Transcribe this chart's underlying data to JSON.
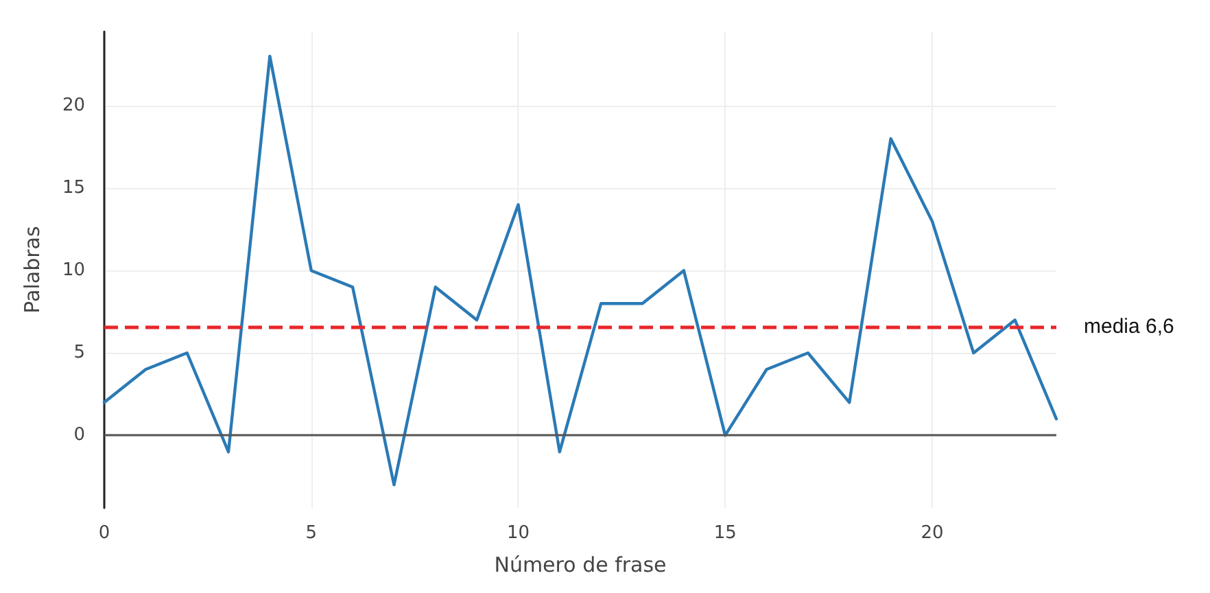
{
  "chart_data": {
    "type": "line",
    "xlabel": "Número de frase",
    "ylabel": "Palabras",
    "x": [
      0,
      1,
      2,
      3,
      4,
      5,
      6,
      7,
      8,
      9,
      10,
      11,
      12,
      13,
      14,
      15,
      16,
      17,
      18,
      19,
      20,
      21,
      22,
      23
    ],
    "series": [
      {
        "color": "#2a7ab5",
        "values": [
          2,
          4,
          5,
          -1,
          23,
          10,
          9,
          -3,
          9,
          7,
          14,
          -1,
          8,
          8,
          10,
          0,
          4,
          5,
          2,
          18,
          13,
          5,
          7,
          1
        ]
      }
    ],
    "xlim": [
      0,
      23
    ],
    "xticks": [
      0,
      5,
      10,
      15,
      20
    ],
    "ylim": [
      -4.4,
      24.5
    ],
    "yticks": [
      0,
      5,
      10,
      15,
      20
    ],
    "ref_lines": [
      {
        "axis": "y",
        "value": 6.6,
        "label": "media 6,6",
        "color": "#e8262a",
        "line_style": "dashed"
      },
      {
        "axis": "y",
        "value": 0,
        "color": "#555555",
        "line_style": "solid"
      }
    ],
    "grid": true,
    "marker": "none",
    "line_style": "solid"
  }
}
